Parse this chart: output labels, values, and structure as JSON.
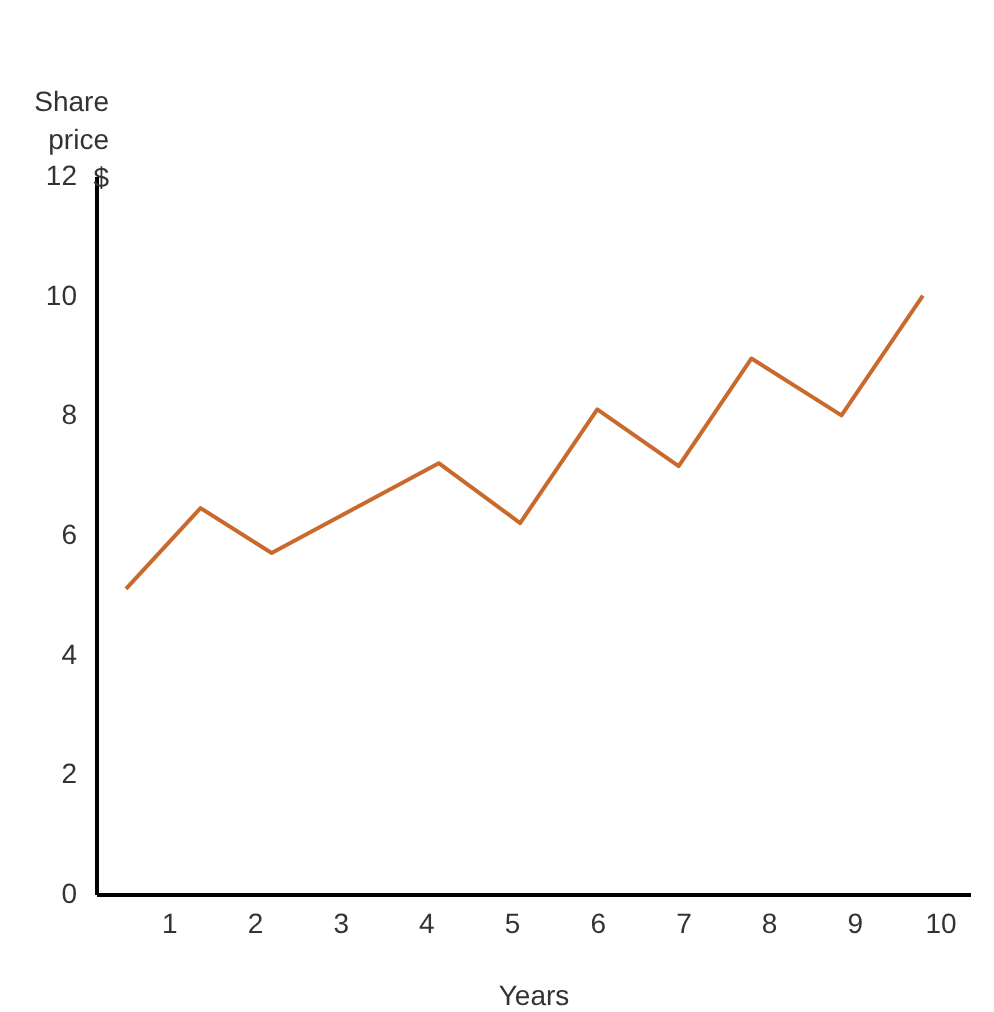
{
  "chart_data": {
    "type": "line",
    "xlabel": "Years",
    "ylabel": "Share price $",
    "x": [
      0.5,
      1.37,
      2.2,
      4.15,
      5.1,
      6.0,
      6.95,
      7.8,
      8.85,
      9.8
    ],
    "series": [
      {
        "color": "#c9692c",
        "values": [
          5.1,
          6.45,
          5.7,
          7.2,
          6.2,
          8.1,
          7.15,
          8.95,
          8.0,
          10.0
        ]
      }
    ],
    "xlim": [
      0.15,
      10.35
    ],
    "xticks": [
      1,
      2,
      3,
      4,
      5,
      6,
      7,
      8,
      9,
      10
    ],
    "ylim": [
      0,
      12
    ],
    "yticks": [
      0,
      2,
      4,
      6,
      8,
      10,
      12
    ],
    "grid": false,
    "legend": false,
    "marker": "none",
    "line_style": "solid"
  }
}
